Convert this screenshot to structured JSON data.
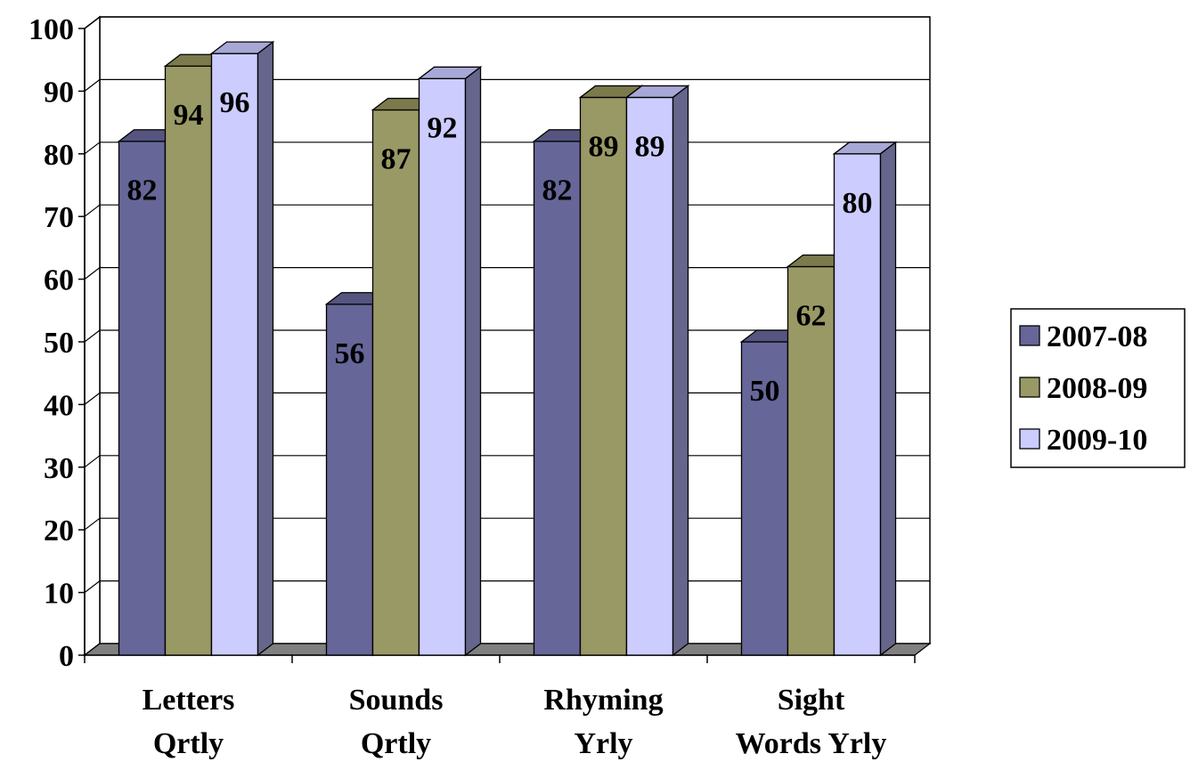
{
  "chart_data": {
    "type": "bar",
    "style": "3d-clustered-column",
    "title": "",
    "xlabel": "",
    "ylabel": "",
    "ylim": [
      0,
      100
    ],
    "y_ticks": [
      "0",
      "10",
      "20",
      "30",
      "40",
      "50",
      "60",
      "70",
      "80",
      "90",
      "100"
    ],
    "grid": true,
    "legend_position": "right",
    "categories": [
      [
        "Letters",
        "Qrtly"
      ],
      [
        "Sounds",
        "Qrtly"
      ],
      [
        "Rhyming",
        "Yrly"
      ],
      [
        "Sight",
        "Words Yrly"
      ]
    ],
    "series": [
      {
        "name": "2007-08",
        "values": [
          82,
          56,
          82,
          50
        ],
        "color": "#666699",
        "side_color": "#5b5b83",
        "top_color": "#55557f"
      },
      {
        "name": "2008-09",
        "values": [
          94,
          87,
          89,
          62
        ],
        "color": "#999966",
        "side_color": "#707044",
        "top_color": "#7a7a4c"
      },
      {
        "name": "2009-10",
        "values": [
          96,
          92,
          89,
          80
        ],
        "color": "#ccccff",
        "side_color": "#66668c",
        "top_color": "#a8a8d6"
      }
    ],
    "data_labels": [
      [
        "82",
        "56",
        "82",
        "50"
      ],
      [
        "94",
        "87",
        "89",
        "62"
      ],
      [
        "96",
        "92",
        "89",
        "80"
      ]
    ]
  }
}
